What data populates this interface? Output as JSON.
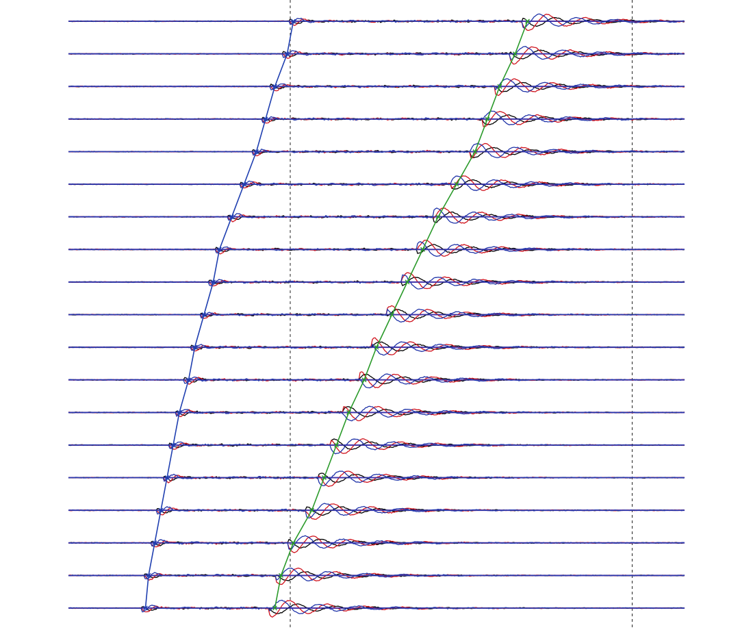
{
  "chart_data": {
    "type": "line",
    "title": "",
    "xlabel": "",
    "ylabel": "",
    "grid": false,
    "legend": "none",
    "trace_count": 19,
    "x_range": [
      0,
      1
    ],
    "reference_times": [
      0.36,
      0.915
    ],
    "series": [
      {
        "color": "#000000",
        "role": "trace-component-1"
      },
      {
        "color": "#d0141e",
        "role": "trace-component-2"
      },
      {
        "color": "#1f33a8",
        "role": "trace-component-3"
      }
    ],
    "picks": [
      {
        "name": "first-arrival-pick",
        "color": "#1f3fb0",
        "times": [
          0.365,
          0.355,
          0.335,
          0.32,
          0.305,
          0.285,
          0.265,
          0.245,
          0.235,
          0.22,
          0.205,
          0.195,
          0.18,
          0.17,
          0.16,
          0.15,
          0.14,
          0.13,
          0.125
        ]
      },
      {
        "name": "second-arrival-pick",
        "color": "#2a9a2a",
        "times": [
          0.745,
          0.725,
          0.7,
          0.68,
          0.66,
          0.63,
          0.6,
          0.575,
          0.55,
          0.525,
          0.5,
          0.48,
          0.455,
          0.435,
          0.415,
          0.395,
          0.365,
          0.345,
          0.335
        ]
      }
    ],
    "colors": {
      "baseline_blue": "#2b3fb5",
      "baseline_purple": "#7a1f8f",
      "dashed_marker": "#222222"
    }
  }
}
